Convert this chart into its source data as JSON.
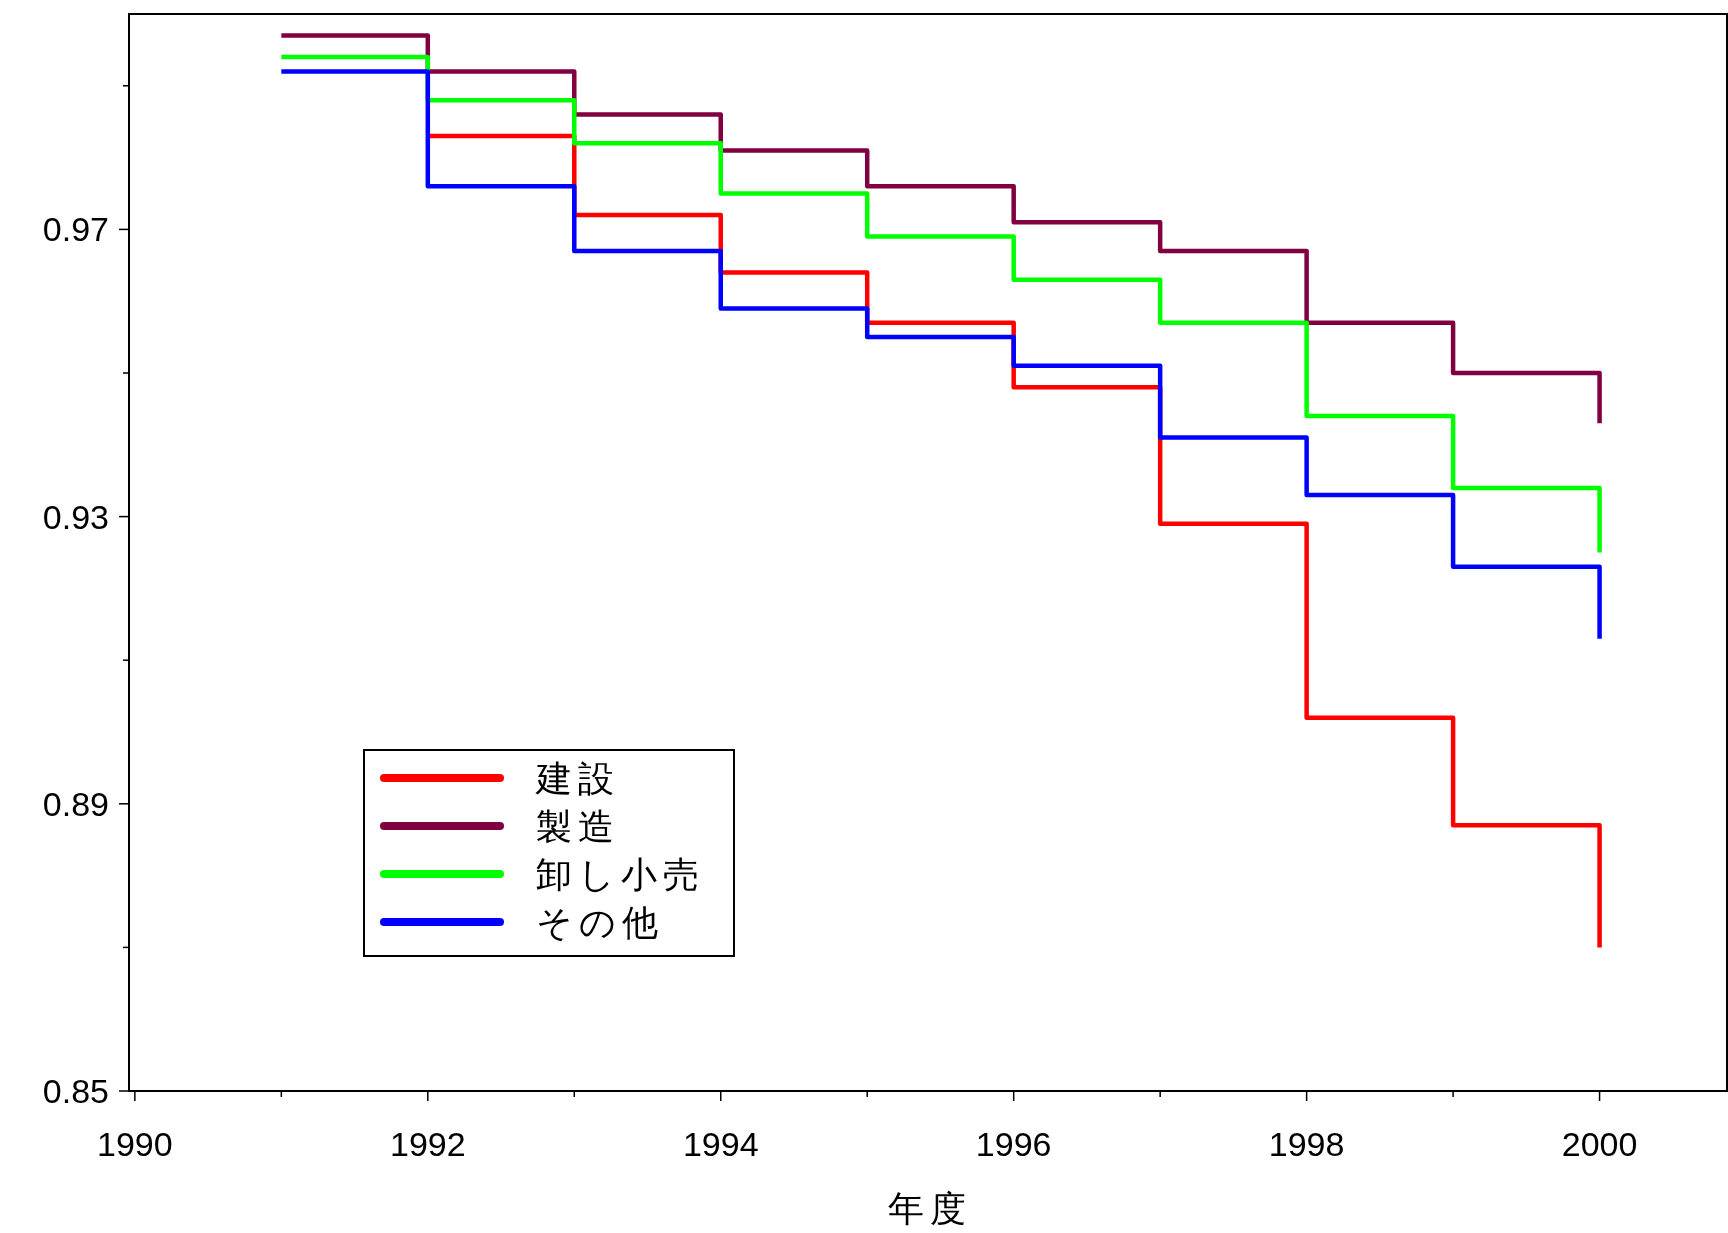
{
  "chart_data": {
    "type": "step",
    "xlabel": "年度",
    "xlim": [
      1989.96,
      2000.87
    ],
    "xticks": [
      1990,
      {
        "value": 1991,
        "label": null
      },
      1992,
      {
        "value": 1993,
        "label": null
      },
      1994,
      {
        "value": 1995,
        "label": null
      },
      1996,
      {
        "value": 1997,
        "label": null
      },
      1998,
      {
        "value": 1999,
        "label": null
      },
      2000
    ],
    "ylim": [
      0.85,
      1.0
    ],
    "yticks": [
      0.85,
      {
        "value": 0.87,
        "label": null
      },
      0.89,
      {
        "value": 0.91,
        "label": null
      },
      0.93,
      {
        "value": 0.95,
        "label": null
      },
      0.97,
      {
        "value": 0.99,
        "label": null
      }
    ],
    "x": [
      1991,
      1992,
      1993,
      1994,
      1995,
      1996,
      1997,
      1998,
      1999,
      2000
    ],
    "series": [
      {
        "name": "建設",
        "color": "#ff0000",
        "values": [
          null,
          0.983,
          0.972,
          0.964,
          0.957,
          0.948,
          0.929,
          0.902,
          0.887,
          0.87
        ]
      },
      {
        "name": "製造",
        "color": "#800040",
        "values": [
          0.997,
          0.992,
          0.986,
          0.981,
          0.976,
          0.971,
          0.967,
          0.957,
          0.95,
          0.943
        ]
      },
      {
        "name": "卸し小売",
        "color": "#00ff00",
        "values": [
          0.994,
          0.988,
          0.982,
          0.975,
          0.969,
          0.963,
          0.957,
          0.944,
          0.934,
          0.925
        ]
      },
      {
        "name": "その他",
        "color": "#0000ff",
        "values": [
          0.992,
          0.976,
          0.967,
          0.959,
          0.955,
          0.951,
          0.941,
          0.933,
          0.923,
          0.913
        ]
      }
    ],
    "legend": "bottom left",
    "grid": false,
    "line_style": "solid",
    "marker": "none"
  }
}
